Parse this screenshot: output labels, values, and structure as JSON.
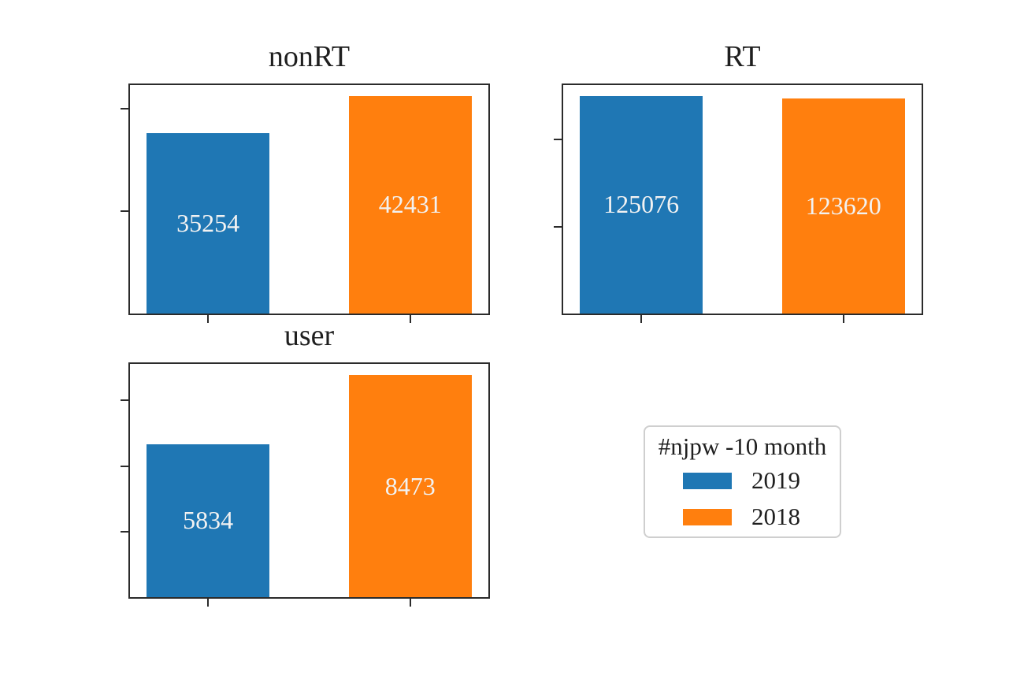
{
  "figure": {
    "background": "#ffffff",
    "text_color": "#1f1f1f",
    "axis_color": "#2b2b2b",
    "bar_label_color": "#f2f2f2"
  },
  "chart_data": {
    "type": "bar",
    "grid": false,
    "tick_labels_shown": false,
    "bar_value_labels": "centered inside bars",
    "series_names": [
      "2019",
      "2018"
    ],
    "subplots": [
      {
        "title": "nonRT",
        "categories": [
          "2019",
          "2018"
        ],
        "values": [
          35254,
          42431
        ],
        "ylim": [
          0,
          44553
        ],
        "yticks": [
          20000,
          40000
        ]
      },
      {
        "title": "RT",
        "categories": [
          "2019",
          "2018"
        ],
        "values": [
          125076,
          123620
        ],
        "ylim": [
          0,
          131330
        ],
        "yticks": [
          50000,
          100000
        ]
      },
      {
        "title": "user",
        "categories": [
          "2019",
          "2018"
        ],
        "values": [
          5834,
          8473
        ],
        "ylim": [
          0,
          8897
        ],
        "yticks": [
          2500,
          5000,
          7500
        ]
      }
    ],
    "legend": {
      "title": "#njpw -10 month",
      "position": "lower-right-quadrant",
      "entries": [
        {
          "label": "2019",
          "color": "#1f77b4"
        },
        {
          "label": "2018",
          "color": "#ff7f0e"
        }
      ]
    }
  }
}
